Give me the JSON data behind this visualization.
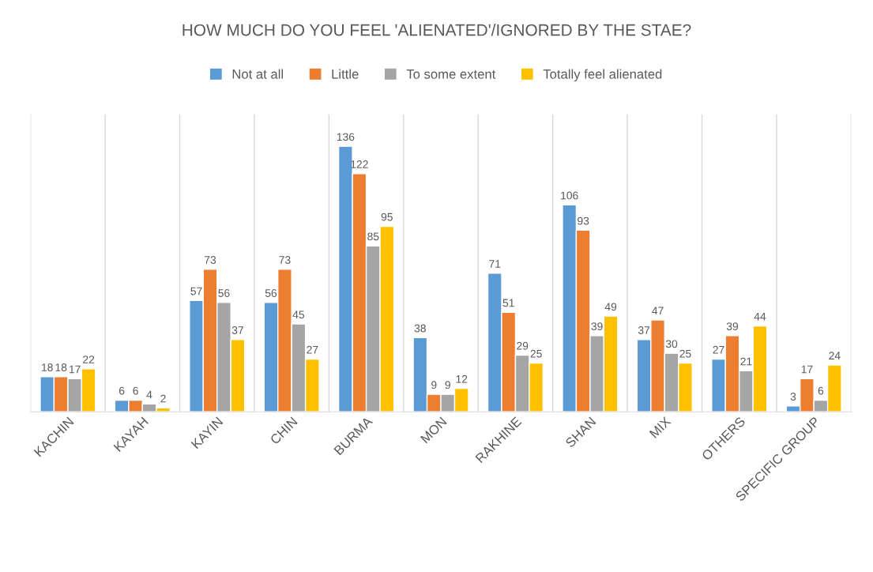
{
  "chart_data": {
    "type": "bar",
    "title": "HOW MUCH DO YOU FEEL 'ALIENATED'/IGNORED BY THE STAE?",
    "categories": [
      "KACHIN",
      "KAYAH",
      "KAYIN",
      "CHIN",
      "BURMA",
      "MON",
      "RAKHINE",
      "SHAN",
      "MIX",
      "OTHERS",
      "SPECIFIC GROUP"
    ],
    "series": [
      {
        "name": "Not at all",
        "color": "#5b9bd5",
        "values": [
          18,
          6,
          57,
          56,
          136,
          38,
          71,
          106,
          37,
          27,
          3
        ]
      },
      {
        "name": "Little",
        "color": "#ed7d31",
        "values": [
          18,
          6,
          73,
          73,
          122,
          9,
          51,
          93,
          47,
          39,
          17
        ]
      },
      {
        "name": "To some extent",
        "color": "#a5a5a5",
        "values": [
          17,
          4,
          56,
          45,
          85,
          9,
          29,
          39,
          30,
          21,
          6
        ]
      },
      {
        "name": "Totally feel alienated",
        "color": "#ffc000",
        "values": [
          22,
          2,
          37,
          27,
          95,
          12,
          25,
          49,
          25,
          44,
          24
        ]
      }
    ],
    "data_labels": true,
    "legend": "top",
    "grid": "x",
    "tick_labels": "x"
  }
}
